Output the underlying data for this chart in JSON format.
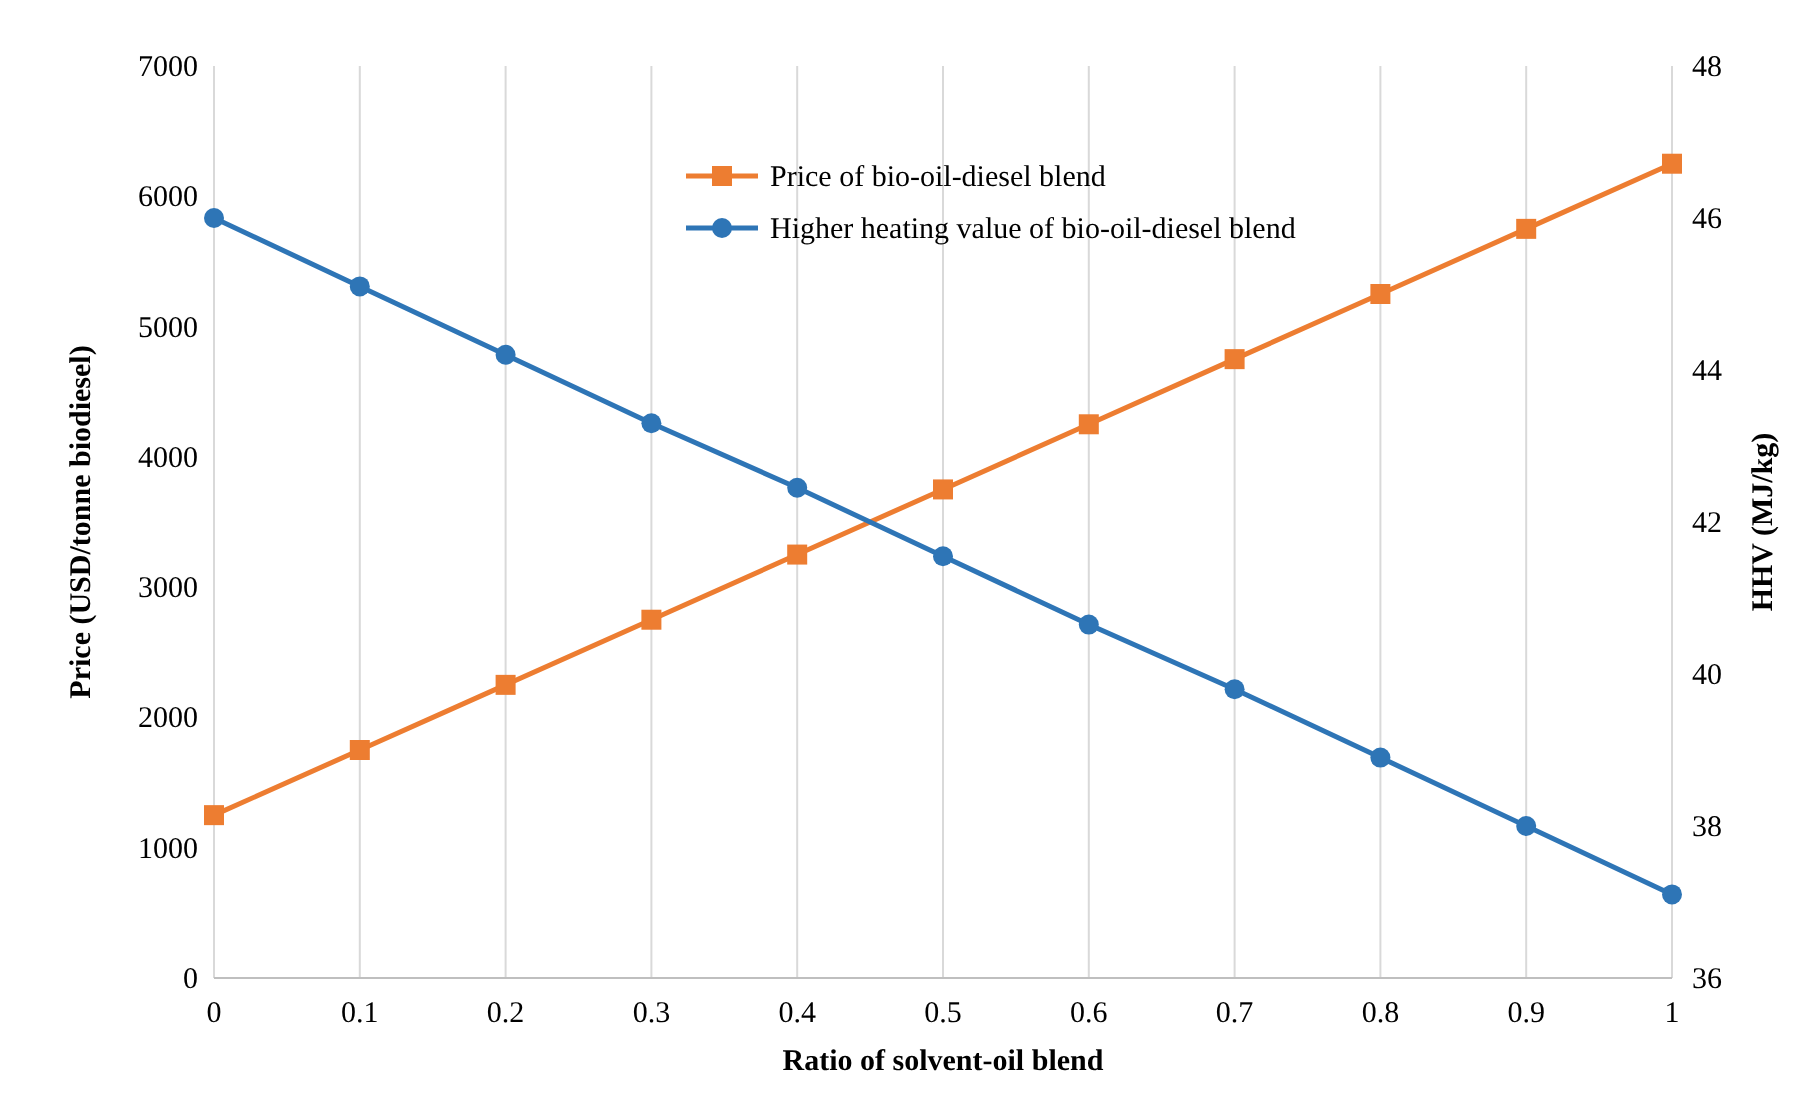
{
  "chart_data": {
    "type": "line",
    "xlabel": "Ratio of solvent-oil blend",
    "ylabel": "Price (USD/tonne biodiesel)",
    "y2label": "HHV (MJ/kg)",
    "x": [
      0,
      0.1,
      0.2,
      0.3,
      0.4,
      0.5,
      0.6,
      0.7,
      0.8,
      0.9,
      1
    ],
    "series": [
      {
        "name": "Price of bio-oil-diesel blend",
        "color": "#ed7d31",
        "marker": "square",
        "values": [
          1250,
          1750,
          2250,
          2750,
          3250,
          3750,
          4250,
          4750,
          5250,
          5750,
          6250
        ]
      },
      {
        "name": "Higher heating value of bio-oil-diesel blend",
        "color": "#2e75b6",
        "marker": "circle",
        "axis": "y2",
        "values": [
          46,
          45.1,
          44.2,
          43.3,
          42.45,
          41.55,
          40.65,
          39.8,
          38.9,
          38,
          37.1
        ]
      }
    ],
    "xlim": [
      0,
      1
    ],
    "xticks": [
      0,
      0.1,
      0.2,
      0.3,
      0.4,
      0.5,
      0.6,
      0.7,
      0.8,
      0.9,
      1
    ],
    "ylim": [
      0,
      7000
    ],
    "yticks": [
      0,
      1000,
      2000,
      3000,
      4000,
      5000,
      6000,
      7000
    ],
    "y2lim": [
      36,
      48
    ],
    "y2ticks": [
      36,
      38,
      40,
      42,
      44,
      46,
      48
    ],
    "grid": "x",
    "legend": "top"
  }
}
